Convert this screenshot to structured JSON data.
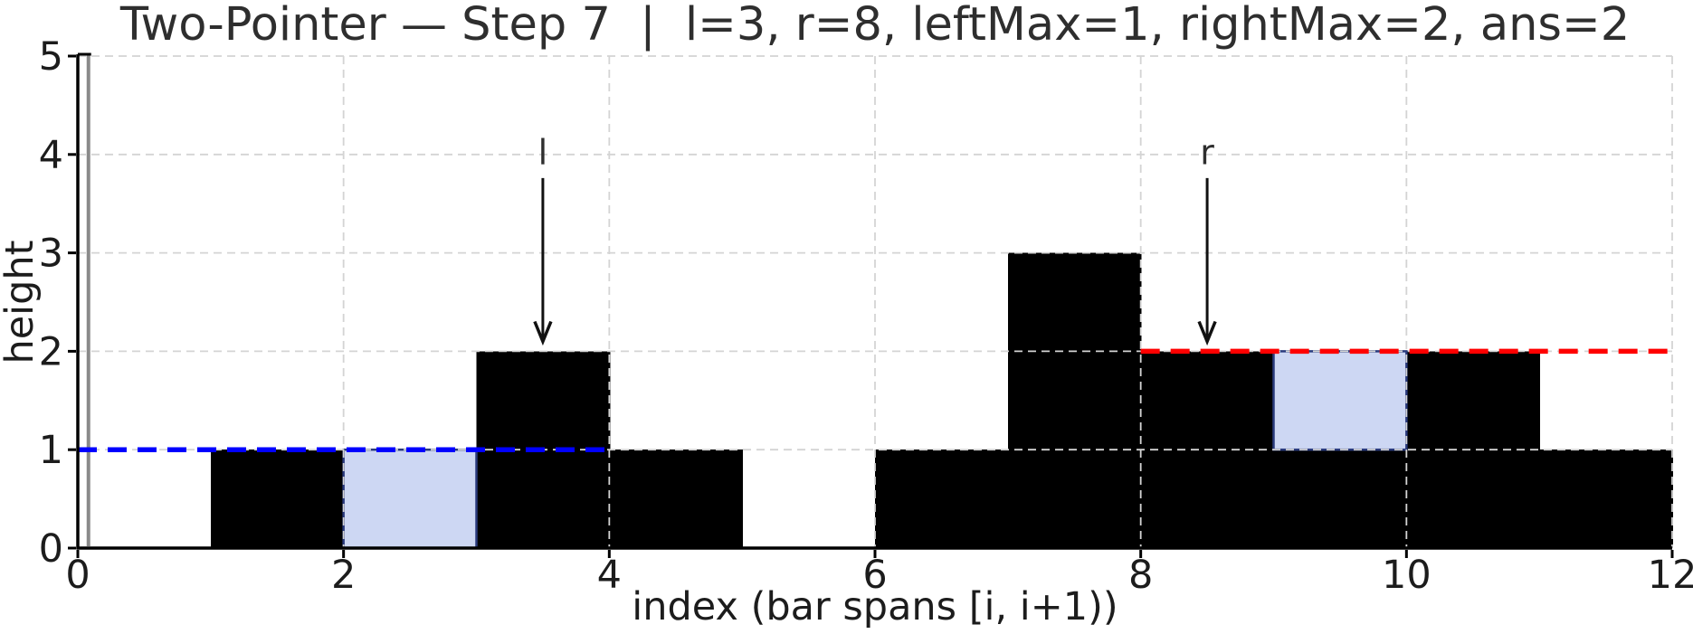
{
  "figure": {
    "title": "Two-Pointer — Step 7  |  l=3, r=8, leftMax=1, rightMax=2, ans=2",
    "xlabel": "index (bar spans [i, i+1))",
    "ylabel": "height"
  },
  "chart_data": {
    "type": "bar",
    "title": "Two-Pointer — Step 7  |  l=3, r=8, leftMax=1, rightMax=2, ans=2",
    "xlabel": "index (bar spans [i, i+1))",
    "ylabel": "height",
    "xlim": [
      0,
      12
    ],
    "ylim": [
      0,
      5
    ],
    "xticks": [
      0,
      2,
      4,
      6,
      8,
      10,
      12
    ],
    "yticks": [
      0,
      1,
      2,
      3,
      4,
      5
    ],
    "grid": true,
    "grid_style": "dashed",
    "bar_heights": [
      0,
      1,
      0,
      2,
      1,
      0,
      1,
      3,
      2,
      1,
      2,
      1
    ],
    "bar_color": "#000000",
    "water_cells": [
      {
        "index": 2,
        "from": 0,
        "to": 1
      },
      {
        "index": 9,
        "from": 1,
        "to": 2
      }
    ],
    "water_fill_color": "#cdd7f3",
    "water_edge_color": "#2a3a7c",
    "left_max_line": {
      "y": 1,
      "x_start": 0,
      "x_end": 4,
      "color": "#0000ff",
      "style": "dashed"
    },
    "right_max_line": {
      "y": 2,
      "x_start": 8,
      "x_end": 12,
      "color": "#ff0000",
      "style": "dashed"
    },
    "pointers": [
      {
        "label": "l",
        "x": 3.5,
        "label_y": 3.9,
        "arrow_from_y": 3.76,
        "arrow_to_y": 2.1
      },
      {
        "label": "r",
        "x": 8.5,
        "label_y": 3.9,
        "arrow_from_y": 3.76,
        "arrow_to_y": 2.1
      }
    ],
    "wall_marker": {
      "x": 0.08,
      "color": "#8a8a8a"
    },
    "state": {
      "step": 7,
      "l": 3,
      "r": 8,
      "leftMax": 1,
      "rightMax": 2,
      "ans": 2
    }
  },
  "colors": {
    "grid": "#d4d4d4",
    "spine": "#000000",
    "tick_text": "#1c1c1c",
    "annotation": "#2e2e2e"
  }
}
